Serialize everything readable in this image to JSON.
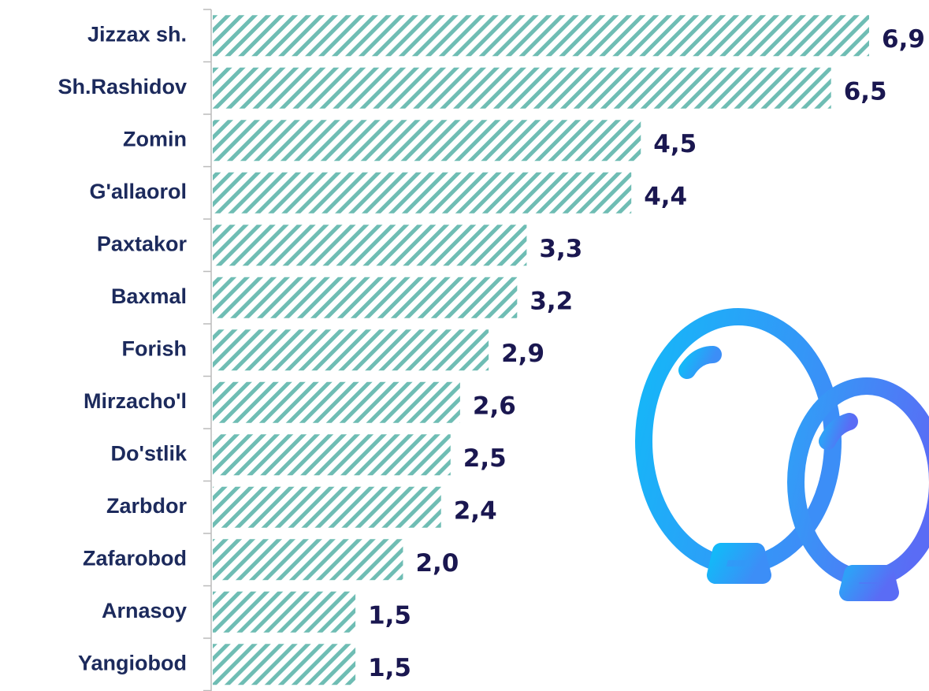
{
  "chart_data": {
    "type": "bar",
    "orientation": "horizontal",
    "categories": [
      "Jizzax sh.",
      "Sh.Rashidov",
      "Zomin",
      "G'allaorol",
      "Paxtakor",
      "Baxmal",
      "Forish",
      "Mirzacho'l",
      "Do'stlik",
      "Zarbdor",
      "Zafarobod",
      "Arnasoy",
      "Yangiobod"
    ],
    "values": [
      6.9,
      6.5,
      4.5,
      4.4,
      3.3,
      3.2,
      2.9,
      2.6,
      2.5,
      2.4,
      2.0,
      1.5,
      1.5
    ],
    "value_labels": [
      "6,9",
      "6,5",
      "4,5",
      "4,4",
      "3,3",
      "3,2",
      "2,9",
      "2,6",
      "2,5",
      "2,4",
      "2,0",
      "1,5",
      "1,5"
    ],
    "color": "#6fbdb4"
  }
}
